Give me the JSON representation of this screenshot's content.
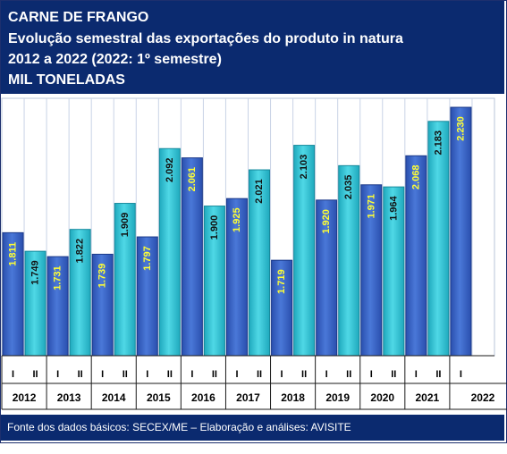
{
  "header": {
    "line1": "CARNE DE FRANGO",
    "line2": "Evolução semestral das exportações do produto in natura",
    "line3": "2012 a 2022 (2022: 1º semestre)",
    "line4": "MIL TONELADAS"
  },
  "footer": {
    "source": "Fonte dos dados básicos: SECEX/ME – Elaboração e análises: AVISITE"
  },
  "colors": {
    "bar_first_semester": "#3a64c4",
    "bar_second_semester": "#30c4d6",
    "label_text": "#ffff33",
    "header_bg": "#0b2a6f"
  },
  "chart_data": {
    "type": "bar",
    "title": "CARNE DE FRANGO",
    "ylabel": "MIL TONELADAS",
    "years": [
      "2012",
      "2013",
      "2014",
      "2015",
      "2016",
      "2017",
      "2018",
      "2019",
      "2020",
      "2021",
      "2022"
    ],
    "semesters": [
      "I",
      "II"
    ],
    "ylim": [
      1400,
      2260
    ],
    "grid": true,
    "bars": [
      {
        "year": "2012",
        "semester": "I",
        "value": 1811,
        "label": "1.811"
      },
      {
        "year": "2012",
        "semester": "II",
        "value": 1749,
        "label": "1.749"
      },
      {
        "year": "2013",
        "semester": "I",
        "value": 1731,
        "label": "1.731"
      },
      {
        "year": "2013",
        "semester": "II",
        "value": 1822,
        "label": "1.822"
      },
      {
        "year": "2014",
        "semester": "I",
        "value": 1739,
        "label": "1.739"
      },
      {
        "year": "2014",
        "semester": "II",
        "value": 1909,
        "label": "1.909"
      },
      {
        "year": "2015",
        "semester": "I",
        "value": 1797,
        "label": "1.797"
      },
      {
        "year": "2015",
        "semester": "II",
        "value": 2092,
        "label": "2.092"
      },
      {
        "year": "2016",
        "semester": "I",
        "value": 2061,
        "label": "2.061"
      },
      {
        "year": "2016",
        "semester": "II",
        "value": 1900,
        "label": "1.900"
      },
      {
        "year": "2017",
        "semester": "I",
        "value": 1925,
        "label": "1.925"
      },
      {
        "year": "2017",
        "semester": "II",
        "value": 2021,
        "label": "2.021"
      },
      {
        "year": "2018",
        "semester": "I",
        "value": 1719,
        "label": "1.719"
      },
      {
        "year": "2018",
        "semester": "II",
        "value": 2103,
        "label": "2.103"
      },
      {
        "year": "2019",
        "semester": "I",
        "value": 1920,
        "label": "1.920"
      },
      {
        "year": "2019",
        "semester": "II",
        "value": 2035,
        "label": "2.035"
      },
      {
        "year": "2020",
        "semester": "I",
        "value": 1971,
        "label": "1.971"
      },
      {
        "year": "2020",
        "semester": "II",
        "value": 1964,
        "label": "1.964"
      },
      {
        "year": "2021",
        "semester": "I",
        "value": 2068,
        "label": "2.068"
      },
      {
        "year": "2021",
        "semester": "II",
        "value": 2183,
        "label": "2.183"
      },
      {
        "year": "2022",
        "semester": "I",
        "value": 2230,
        "label": "2.230"
      }
    ]
  }
}
